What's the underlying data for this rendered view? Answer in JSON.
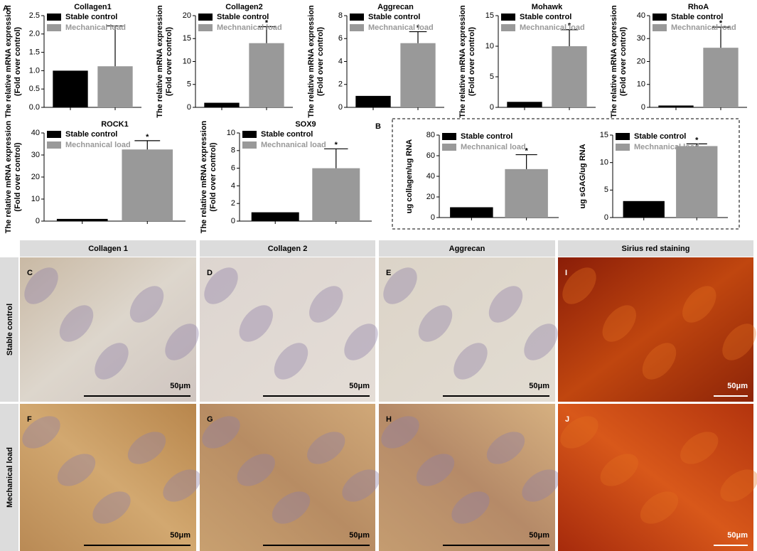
{
  "chart_data": [
    {
      "type": "bar",
      "title": "Collagen1",
      "ylabel": [
        "The relative mRNA expression",
        "(Fold over control)"
      ],
      "series": [
        {
          "name": "Stable control",
          "color": "#000000",
          "values": [
            1.0
          ]
        },
        {
          "name": "Mechanical load",
          "color": "#999999",
          "values": [
            1.12
          ],
          "errors": [
            1.1
          ]
        }
      ],
      "ylim": [
        0,
        2.5
      ],
      "yticks": [
        {
          "value": 0,
          "label": "0.0"
        },
        0.5,
        {
          "value": 1,
          "label": "1.0"
        },
        1.5,
        {
          "value": 2,
          "label": "2.0"
        },
        2.5
      ]
    },
    {
      "type": "bar",
      "title": "Collagen2",
      "ylabel": [
        "The relative mRNA expression",
        "(Fold over control)"
      ],
      "series": [
        {
          "name": "Stable control",
          "color": "#000000",
          "values": [
            1
          ]
        },
        {
          "name": "Mechnanical load",
          "color": "#999999",
          "values": [
            14
          ],
          "errors": [
            3.6
          ]
        }
      ],
      "annotation": "*",
      "ylim": [
        0,
        20
      ],
      "yticks": [
        0,
        5,
        10,
        15,
        20
      ]
    },
    {
      "type": "bar",
      "title": "Aggrecan",
      "ylabel": [
        "The relative mRNA expression",
        "(Fold over control)"
      ],
      "series": [
        {
          "name": "Stable control",
          "color": "#000000",
          "values": [
            1
          ]
        },
        {
          "name": "Mechnanical load",
          "color": "#999999",
          "values": [
            5.6
          ],
          "errors": [
            1.0
          ]
        }
      ],
      "annotation": "*",
      "ylim": [
        0,
        8
      ],
      "yticks": [
        0,
        2,
        4,
        6,
        8
      ]
    },
    {
      "type": "bar",
      "title": "Mohawk",
      "ylabel": [
        "The relative mRNA expression",
        "(Fold over control)"
      ],
      "series": [
        {
          "name": "Stable control",
          "color": "#000000",
          "values": [
            0.9
          ]
        },
        {
          "name": "Mechnanical load",
          "color": "#999999",
          "values": [
            10
          ],
          "errors": [
            2.7
          ]
        }
      ],
      "annotation": "*",
      "ylim": [
        0,
        15
      ],
      "yticks": [
        0,
        5,
        10,
        15
      ]
    },
    {
      "type": "bar",
      "title": "RhoA",
      "ylabel": [
        "The relative mRNA expression",
        "(Fold over control)"
      ],
      "series": [
        {
          "name": "Stable control",
          "color": "#000000",
          "values": [
            0.8
          ]
        },
        {
          "name": "Mechnanical load",
          "color": "#999999",
          "values": [
            26
          ],
          "errors": [
            9
          ]
        }
      ],
      "annotation": "*",
      "ylim": [
        0,
        40
      ],
      "yticks": [
        0,
        10,
        20,
        30,
        40
      ]
    },
    {
      "type": "bar",
      "title": "ROCK1",
      "ylabel": [
        "The relative mRNA expression",
        "(Fold over control)"
      ],
      "series": [
        {
          "name": "Stable control",
          "color": "#000000",
          "values": [
            1
          ]
        },
        {
          "name": "Mechnanical load",
          "color": "#999999",
          "values": [
            32.5
          ],
          "errors": [
            4
          ]
        }
      ],
      "annotation": "*",
      "ylim": [
        0,
        40
      ],
      "yticks": [
        0,
        10,
        20,
        30,
        40
      ]
    },
    {
      "type": "bar",
      "title": "SOX9",
      "ylabel": [
        "The relative mRNA expression",
        "(Fold over control)"
      ],
      "series": [
        {
          "name": "Stable control",
          "color": "#000000",
          "values": [
            1
          ]
        },
        {
          "name": "Mechnanical load",
          "color": "#999999",
          "values": [
            6
          ],
          "errors": [
            2.2
          ]
        }
      ],
      "annotation": "*",
      "ylim": [
        0,
        10
      ],
      "yticks": [
        0,
        2,
        4,
        6,
        8,
        10
      ]
    },
    {
      "type": "bar",
      "ylabel": [
        "ug collagen/ug RNA"
      ],
      "series": [
        {
          "name": "Stable control",
          "color": "#000000",
          "values": [
            10
          ]
        },
        {
          "name": "Mechnanical load",
          "color": "#999999",
          "values": [
            47
          ],
          "errors": [
            14
          ]
        }
      ],
      "annotation": "*",
      "ylim": [
        0,
        80
      ],
      "yticks": [
        0,
        20,
        40,
        60,
        80
      ]
    },
    {
      "type": "bar",
      "ylabel": [
        "ug sGAG/ug RNA"
      ],
      "series": [
        {
          "name": "Stable control",
          "color": "#000000",
          "values": [
            3
          ]
        },
        {
          "name": "Mechnanical load",
          "color": "#999999",
          "values": [
            13
          ],
          "errors": [
            0.4
          ]
        }
      ],
      "annotation": "*",
      "ylim": [
        0,
        15
      ],
      "yticks": [
        0,
        5,
        10,
        15
      ]
    }
  ],
  "figure": {
    "panel_labels": [
      "A",
      "B"
    ],
    "image_grid": {
      "columns": [
        "Collagen 1",
        "Collagen 2",
        "Aggrecan",
        "Sirius red staining"
      ],
      "rows": [
        "Stable control",
        "Mechanical load"
      ],
      "cells": [
        [
          {
            "letter": "C",
            "scale": "50μm"
          },
          {
            "letter": "D",
            "scale": "50μm"
          },
          {
            "letter": "E",
            "scale": "50μm"
          },
          {
            "letter": "I",
            "scale": "50μm"
          }
        ],
        [
          {
            "letter": "F",
            "scale": "50μm"
          },
          {
            "letter": "G",
            "scale": "50μm"
          },
          {
            "letter": "H",
            "scale": "50μm"
          },
          {
            "letter": "J",
            "scale": "50μm"
          }
        ]
      ]
    }
  }
}
